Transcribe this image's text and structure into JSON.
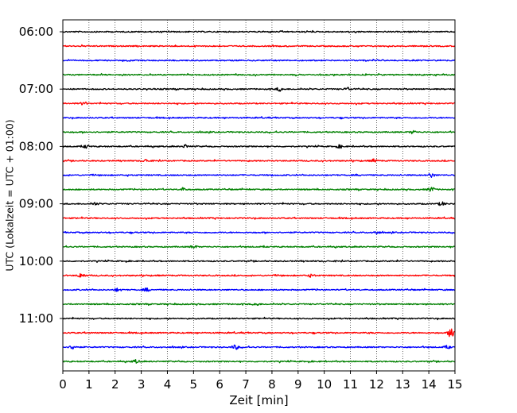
{
  "chart_data": {
    "type": "line",
    "title": "",
    "xlabel": "Zeit  [min]",
    "ylabel": "UTC (Lokalzeit = UTC + 01:00)",
    "xlim": [
      0,
      15
    ],
    "x_ticks": [
      0,
      1,
      2,
      3,
      4,
      5,
      6,
      7,
      8,
      9,
      10,
      11,
      12,
      13,
      14,
      15
    ],
    "grid": "vertical dotted",
    "trace_interval_min": 15,
    "trace_start": "06:00",
    "trace_end": "11:45",
    "y_tick_labels": [
      "06:00",
      "07:00",
      "08:00",
      "09:00",
      "10:00",
      "11:00"
    ],
    "trace_colors": [
      "#000000",
      "#ff0000",
      "#0000ff",
      "#008000"
    ],
    "traces": [
      {
        "start": "06:00",
        "color": "#000000",
        "events": []
      },
      {
        "start": "06:15",
        "color": "#ff0000",
        "events": []
      },
      {
        "start": "06:30",
        "color": "#0000ff",
        "events": []
      },
      {
        "start": "06:45",
        "color": "#008000",
        "events": []
      },
      {
        "start": "07:00",
        "color": "#000000",
        "events": [
          [
            8.3,
            0.35
          ],
          [
            10.9,
            0.3
          ]
        ]
      },
      {
        "start": "07:15",
        "color": "#ff0000",
        "events": [
          [
            0.8,
            0.3
          ]
        ]
      },
      {
        "start": "07:30",
        "color": "#0000ff",
        "events": []
      },
      {
        "start": "07:45",
        "color": "#008000",
        "events": [
          [
            13.4,
            0.3
          ]
        ]
      },
      {
        "start": "08:00",
        "color": "#000000",
        "events": [
          [
            0.9,
            0.3
          ],
          [
            4.7,
            0.3
          ],
          [
            10.6,
            0.3
          ]
        ]
      },
      {
        "start": "08:15",
        "color": "#ff0000",
        "events": [
          [
            3.2,
            0.3
          ],
          [
            11.9,
            0.3
          ]
        ]
      },
      {
        "start": "08:30",
        "color": "#0000ff",
        "events": [
          [
            14.1,
            0.35
          ]
        ]
      },
      {
        "start": "08:45",
        "color": "#008000",
        "events": [
          [
            4.6,
            0.3
          ],
          [
            14.1,
            0.4
          ]
        ]
      },
      {
        "start": "09:00",
        "color": "#000000",
        "events": [
          [
            1.2,
            0.3
          ],
          [
            14.5,
            0.35
          ]
        ]
      },
      {
        "start": "09:15",
        "color": "#ff0000",
        "events": []
      },
      {
        "start": "09:30",
        "color": "#0000ff",
        "events": [
          [
            12.0,
            0.3
          ]
        ]
      },
      {
        "start": "09:45",
        "color": "#008000",
        "events": [
          [
            5.0,
            0.3
          ]
        ]
      },
      {
        "start": "10:00",
        "color": "#000000",
        "events": []
      },
      {
        "start": "10:15",
        "color": "#ff0000",
        "events": [
          [
            0.7,
            0.4
          ],
          [
            9.5,
            0.3
          ]
        ]
      },
      {
        "start": "10:30",
        "color": "#0000ff",
        "events": [
          [
            2.1,
            0.3
          ],
          [
            3.2,
            0.3
          ]
        ]
      },
      {
        "start": "10:45",
        "color": "#008000",
        "events": [
          [
            7.4,
            0.3
          ]
        ]
      },
      {
        "start": "11:00",
        "color": "#000000",
        "events": []
      },
      {
        "start": "11:15",
        "color": "#ff0000",
        "events": [
          [
            14.9,
            1.0
          ]
        ]
      },
      {
        "start": "11:30",
        "color": "#0000ff",
        "events": [
          [
            0.4,
            0.4
          ],
          [
            6.6,
            0.4
          ],
          [
            14.7,
            0.3
          ]
        ]
      },
      {
        "start": "11:45",
        "color": "#008000",
        "events": [
          [
            2.8,
            0.3
          ]
        ]
      }
    ]
  }
}
